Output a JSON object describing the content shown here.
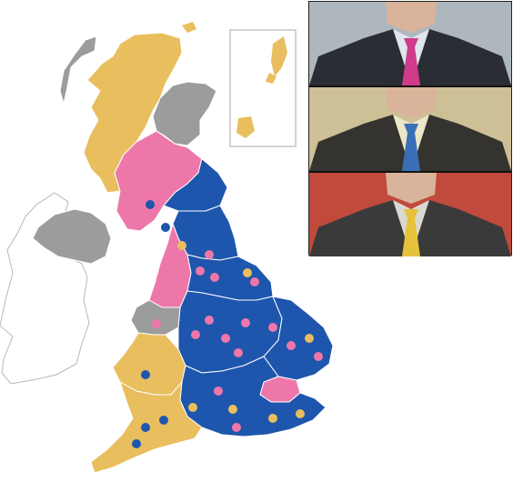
{
  "map": {
    "colors": {
      "party_a": "#1e56ad",
      "party_b": "#ee77aa",
      "party_c": "#e8be5e",
      "other": "#9c9c9c",
      "border": "#ffffff",
      "outline": "#aaaaaa"
    },
    "regions": [
      {
        "id": "highlands-west",
        "party": "party_c"
      },
      {
        "id": "highlands-east",
        "party": "other"
      },
      {
        "id": "western-isles",
        "party": "other"
      },
      {
        "id": "central-belt",
        "party": "party_b"
      },
      {
        "id": "borders",
        "party": "party_a"
      },
      {
        "id": "northern-ireland",
        "party": "other"
      },
      {
        "id": "north-england",
        "party": "party_a"
      },
      {
        "id": "north-west",
        "party": "party_b"
      },
      {
        "id": "yorkshire",
        "party": "party_a"
      },
      {
        "id": "midlands",
        "party": "party_a"
      },
      {
        "id": "wales-north",
        "party": "other"
      },
      {
        "id": "wales-south",
        "party": "party_c"
      },
      {
        "id": "east-anglia",
        "party": "party_a"
      },
      {
        "id": "london",
        "party": "party_b"
      },
      {
        "id": "south-east",
        "party": "party_a"
      },
      {
        "id": "south-west",
        "party": "party_c"
      }
    ]
  },
  "photos": [
    {
      "id": "portrait-1",
      "tie_color": "#d03b8a",
      "bg_color": "#aeb7bd",
      "shirt_color": "#dfe6ee",
      "suit_color": "#2a2d33"
    },
    {
      "id": "portrait-2",
      "tie_color": "#3a6fb8",
      "bg_color": "#cdbf96",
      "shirt_color": "#ece6c8",
      "suit_color": "#34332f"
    },
    {
      "id": "portrait-3",
      "tie_color": "#e6c23a",
      "bg_color": "#c04a3c",
      "shirt_color": "#d9d9d2",
      "suit_color": "#3a3a3a"
    }
  ]
}
